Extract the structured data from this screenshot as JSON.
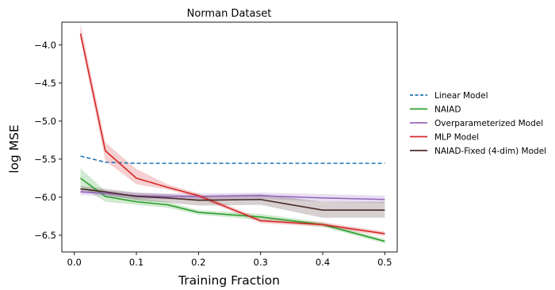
{
  "chart_data": {
    "type": "line",
    "title": "Norman Dataset",
    "xlabel": "Training Fraction",
    "ylabel": "log MSE",
    "xlim": [
      -0.02,
      0.52
    ],
    "ylim": [
      -6.72,
      -3.7
    ],
    "xticks": [
      0.0,
      0.1,
      0.2,
      0.3,
      0.4,
      0.5
    ],
    "xtick_labels": [
      "0.0",
      "0.1",
      "0.2",
      "0.3",
      "0.4",
      "0.5"
    ],
    "yticks": [
      -4.0,
      -4.5,
      -5.0,
      -5.5,
      -6.0,
      -6.5
    ],
    "ytick_labels": [
      "−4.0",
      "−4.5",
      "−5.0",
      "−5.5",
      "−6.0",
      "−6.5"
    ],
    "grid": false,
    "legend_position": "outside-right",
    "x": [
      0.01,
      0.05,
      0.1,
      0.15,
      0.2,
      0.3,
      0.4,
      0.5
    ],
    "series": [
      {
        "name": "Linear Model",
        "color": "#1f77b4",
        "style": "dashed",
        "values": [
          -5.46,
          -5.54,
          -5.555,
          -5.555,
          -5.555,
          -5.555,
          -5.555,
          -5.555
        ]
      },
      {
        "name": "NAIAD",
        "color": "#2ca02c",
        "style": "solid",
        "values": [
          -5.75,
          -5.99,
          -6.06,
          -6.1,
          -6.2,
          -6.26,
          -6.36,
          -6.58
        ],
        "lower": [
          -5.86,
          -6.06,
          -6.1,
          -6.14,
          -6.23,
          -6.3,
          -6.39,
          -6.61
        ],
        "upper": [
          -5.62,
          -5.92,
          -6.01,
          -6.06,
          -6.17,
          -6.22,
          -6.33,
          -6.55
        ]
      },
      {
        "name": "Overparameterized Model",
        "color": "#9467bd",
        "style": "solid",
        "values": [
          -5.93,
          -5.95,
          -5.98,
          -5.99,
          -5.99,
          -5.98,
          -6.01,
          -6.03
        ],
        "lower": [
          -5.97,
          -5.99,
          -6.02,
          -6.03,
          -6.03,
          -6.02,
          -6.06,
          -6.08
        ],
        "upper": [
          -5.89,
          -5.91,
          -5.94,
          -5.95,
          -5.95,
          -5.94,
          -5.96,
          -5.98
        ]
      },
      {
        "name": "MLP Model",
        "color": "#d62728",
        "style": "solid",
        "values": [
          -3.85,
          -5.39,
          -5.75,
          -5.87,
          -5.98,
          -6.31,
          -6.36,
          -6.48
        ],
        "lower": [
          -3.92,
          -5.52,
          -5.83,
          -5.9,
          -6.01,
          -6.34,
          -6.39,
          -6.51
        ],
        "upper": [
          -3.72,
          -5.28,
          -5.63,
          -5.83,
          -5.95,
          -6.28,
          -6.33,
          -6.45
        ]
      },
      {
        "name": "NAIAD-Fixed (4-dim) Model",
        "color": "#4a2a2a",
        "style": "solid",
        "values": [
          -5.89,
          -5.93,
          -5.99,
          -6.01,
          -6.04,
          -6.03,
          -6.17,
          -6.17
        ],
        "lower": [
          -5.93,
          -5.97,
          -6.04,
          -6.07,
          -6.11,
          -6.1,
          -6.27,
          -6.27
        ],
        "upper": [
          -5.85,
          -5.89,
          -5.94,
          -5.96,
          -5.98,
          -5.96,
          -6.06,
          -6.06
        ]
      }
    ]
  }
}
